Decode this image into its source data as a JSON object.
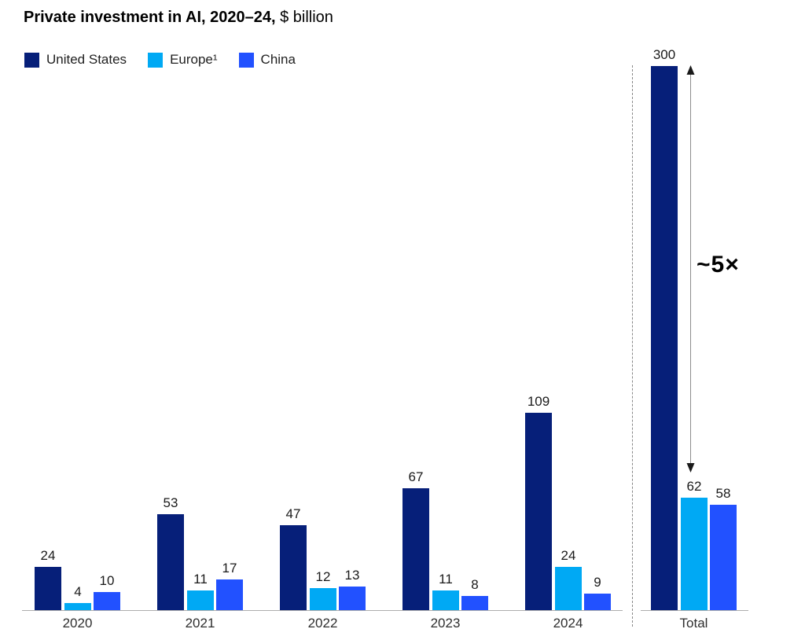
{
  "header": {
    "title_bold": "Private investment in AI, 2020–24,",
    "title_unit": "$ billion"
  },
  "legend": {
    "items": [
      {
        "label": "United States"
      },
      {
        "label": "Europe¹"
      },
      {
        "label": "China"
      }
    ]
  },
  "annotation": {
    "label": "~5×"
  },
  "chart_data": {
    "type": "bar",
    "grouped": true,
    "title": "Private investment in AI, 2020–24, $ billion",
    "categories": [
      "2020",
      "2021",
      "2022",
      "2023",
      "2024"
    ],
    "total_category": "Total",
    "series": [
      {
        "name": "United States",
        "color": "#061F79",
        "values": [
          24,
          53,
          47,
          67,
          109
        ],
        "total": 300
      },
      {
        "name": "Europe¹",
        "color": "#00A9F4",
        "values": [
          4,
          11,
          12,
          11,
          24
        ],
        "total": 62
      },
      {
        "name": "China",
        "color": "#2251FF",
        "values": [
          10,
          17,
          13,
          8,
          9
        ],
        "total": 58
      }
    ],
    "ylim": [
      0,
      300
    ],
    "grid": false,
    "value_labels": true,
    "legend_position": "top-left",
    "annotation": "~5×",
    "axis_color": "#adadad"
  }
}
